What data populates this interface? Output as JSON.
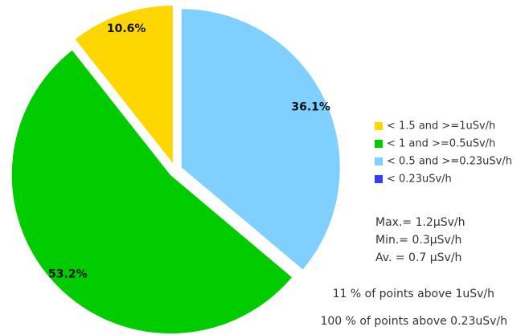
{
  "chart_data": {
    "type": "pie",
    "categories": [
      "< 1.5 and >=1uSv/h",
      "< 1 and >=0.5uSv/h",
      "< 0.5 and >=0.23uSv/h",
      "< 0.23uSv/h"
    ],
    "values": [
      10.6,
      53.2,
      36.1,
      0
    ],
    "value_labels": [
      "10.6%",
      "53.2%",
      "36.1%",
      null
    ],
    "colors": [
      "#ffd700",
      "#00cc00",
      "#80d0ff",
      "#3a3aee"
    ],
    "annotations": [
      "Max.= 1.2µSv/h",
      "Min.= 0.3µSv/h",
      "Av. = 0.7 µSv/h",
      "11 % of points above 1uSv/h",
      "100 % of points above 0.23uSv/h"
    ]
  }
}
